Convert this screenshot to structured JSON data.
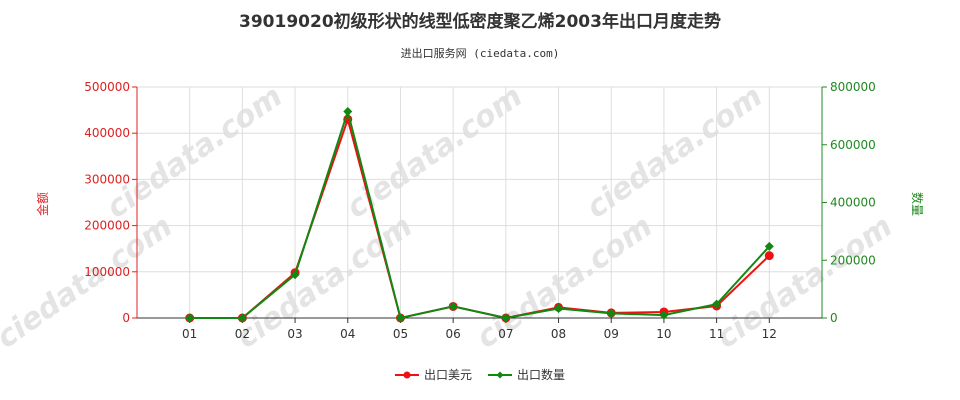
{
  "chart_data": {
    "type": "line",
    "title": "39019020初级形状的线型低密度聚乙烯2003年出口月度走势",
    "subtitle": "进出口服务网 (ciedata.com)",
    "categories": [
      "01",
      "02",
      "03",
      "04",
      "05",
      "06",
      "07",
      "08",
      "09",
      "10",
      "11",
      "12"
    ],
    "y_left": {
      "label": "金额",
      "ylim": [
        0,
        500000
      ],
      "ticks": [
        0,
        100000,
        200000,
        300000,
        400000,
        500000
      ],
      "color": "#dd2222"
    },
    "y_right": {
      "label": "数量",
      "ylim": [
        0,
        800000
      ],
      "ticks": [
        0,
        200000,
        400000,
        600000,
        800000
      ],
      "color": "#228822"
    },
    "series": [
      {
        "name": "出口美元",
        "axis": "left",
        "color": "#ee1111",
        "values": [
          0,
          0,
          98000,
          430000,
          0,
          25000,
          0,
          23000,
          11000,
          13000,
          26000,
          135000
        ]
      },
      {
        "name": "出口数量",
        "axis": "right",
        "color": "#118811",
        "values": [
          0,
          0,
          150000,
          715000,
          0,
          40000,
          0,
          33000,
          16000,
          10000,
          48000,
          248000
        ]
      }
    ],
    "grid": true,
    "legend": "bottom-center"
  }
}
